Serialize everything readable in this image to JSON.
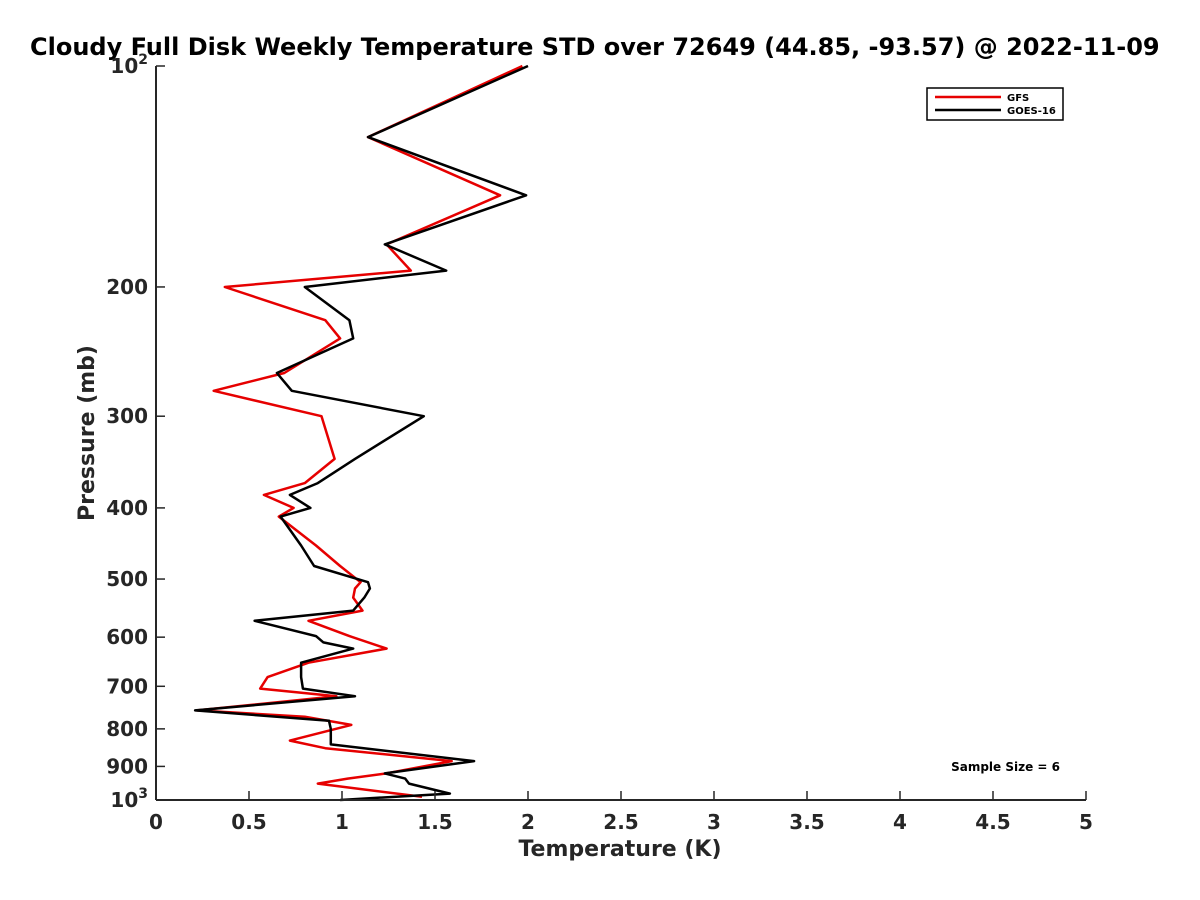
{
  "chart_data": {
    "type": "line",
    "title": "Cloudy Full Disk Weekly Temperature STD over 72649 (44.85, -93.57) @ 2022-11-09",
    "xlabel": "Temperature (K)",
    "ylabel": "Pressure (mb)",
    "xlim": [
      0,
      5
    ],
    "ylim": [
      100,
      1000
    ],
    "y_scale": "log",
    "y_reversed": true,
    "grid": false,
    "legend_position": "top-right",
    "x_ticks": [
      0,
      0.5,
      1,
      1.5,
      2,
      2.5,
      3,
      3.5,
      4,
      4.5,
      5
    ],
    "x_tick_labels": [
      "0",
      "0.5",
      "1",
      "1.5",
      "2",
      "2.5",
      "3",
      "3.5",
      "4",
      "4.5",
      "5"
    ],
    "y_ticks": [
      100,
      200,
      300,
      400,
      500,
      600,
      700,
      800,
      900,
      1000
    ],
    "y_tick_labels": [
      {
        "base": "10",
        "exp": "2"
      },
      {
        "base": "200",
        "exp": ""
      },
      {
        "base": "300",
        "exp": ""
      },
      {
        "base": "400",
        "exp": ""
      },
      {
        "base": "500",
        "exp": ""
      },
      {
        "base": "600",
        "exp": ""
      },
      {
        "base": "700",
        "exp": ""
      },
      {
        "base": "800",
        "exp": ""
      },
      {
        "base": "900",
        "exp": ""
      },
      {
        "base": "10",
        "exp": "3"
      }
    ],
    "annotation": "Sample Size = 6",
    "series": [
      {
        "name": "GFS",
        "color": "#e60000",
        "points": [
          [
            1.97,
            100
          ],
          [
            1.14,
            125
          ],
          [
            1.85,
            150
          ],
          [
            1.24,
            175
          ],
          [
            1.37,
            190
          ],
          [
            0.37,
            200
          ],
          [
            0.91,
            222
          ],
          [
            0.99,
            235
          ],
          [
            0.69,
            262
          ],
          [
            0.31,
            277
          ],
          [
            0.89,
            300
          ],
          [
            0.96,
            343
          ],
          [
            0.8,
            370
          ],
          [
            0.58,
            384
          ],
          [
            0.74,
            400
          ],
          [
            0.66,
            411
          ],
          [
            0.86,
            450
          ],
          [
            0.99,
            480
          ],
          [
            1.1,
            505
          ],
          [
            1.07,
            515
          ],
          [
            1.06,
            530
          ],
          [
            1.11,
            552
          ],
          [
            0.82,
            570
          ],
          [
            1.04,
            598
          ],
          [
            1.24,
            622
          ],
          [
            0.82,
            650
          ],
          [
            0.6,
            680
          ],
          [
            0.56,
            705
          ],
          [
            0.97,
            722
          ],
          [
            0.22,
            755
          ],
          [
            0.8,
            770
          ],
          [
            1.05,
            790
          ],
          [
            0.72,
            830
          ],
          [
            0.91,
            850
          ],
          [
            1.59,
            885
          ],
          [
            1.24,
            920
          ],
          [
            1.03,
            935
          ],
          [
            0.87,
            950
          ],
          [
            1.43,
            990
          ]
        ]
      },
      {
        "name": "GOES-16",
        "color": "#000000",
        "points": [
          [
            2.0,
            100
          ],
          [
            1.14,
            125
          ],
          [
            1.99,
            150
          ],
          [
            1.23,
            175
          ],
          [
            1.56,
            190
          ],
          [
            0.8,
            200
          ],
          [
            1.04,
            222
          ],
          [
            1.06,
            235
          ],
          [
            0.65,
            262
          ],
          [
            0.73,
            277
          ],
          [
            1.44,
            300
          ],
          [
            1.07,
            343
          ],
          [
            0.87,
            370
          ],
          [
            0.72,
            384
          ],
          [
            0.83,
            400
          ],
          [
            0.67,
            411
          ],
          [
            0.78,
            450
          ],
          [
            0.85,
            480
          ],
          [
            1.14,
            505
          ],
          [
            1.15,
            515
          ],
          [
            1.12,
            530
          ],
          [
            1.06,
            552
          ],
          [
            0.53,
            570
          ],
          [
            0.86,
            598
          ],
          [
            0.9,
            610
          ],
          [
            1.06,
            622
          ],
          [
            0.78,
            650
          ],
          [
            0.78,
            680
          ],
          [
            0.79,
            705
          ],
          [
            1.07,
            722
          ],
          [
            0.21,
            755
          ],
          [
            0.93,
            780
          ],
          [
            0.94,
            800
          ],
          [
            0.94,
            840
          ],
          [
            1.71,
            885
          ],
          [
            1.23,
            920
          ],
          [
            1.34,
            935
          ],
          [
            1.36,
            950
          ],
          [
            1.58,
            980
          ],
          [
            0.99,
            1000
          ]
        ]
      }
    ]
  }
}
